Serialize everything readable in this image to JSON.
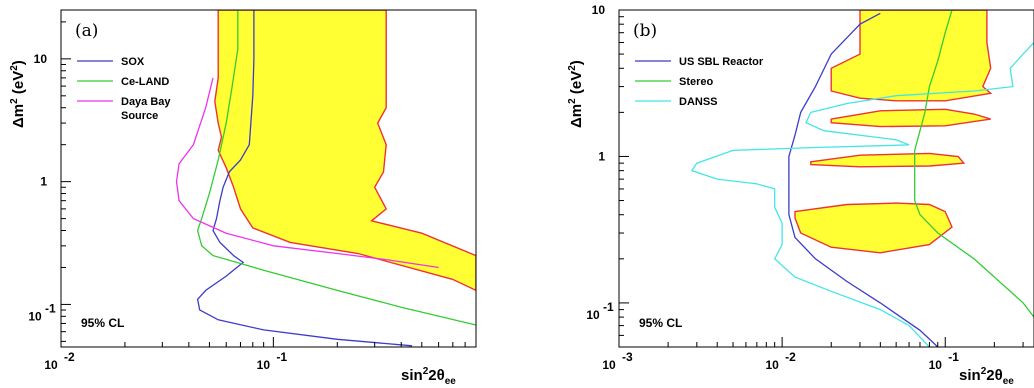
{
  "chart_data": [
    {
      "panel": "(a)",
      "type": "line",
      "xlabel": "sin²2θee",
      "ylabel": "Δm² (eV²)",
      "xscale": "log",
      "yscale": "log",
      "xlim": [
        0.01,
        0.9
      ],
      "ylim": [
        0.045,
        25
      ],
      "x_ticks": [
        {
          "base": "10",
          "exp": "-2"
        },
        {
          "base": "10",
          "exp": "-1"
        }
      ],
      "y_ticks": [
        {
          "label": "1"
        },
        {
          "label": "10",
          "exp": ""
        },
        {
          "base": "10",
          "exp": "-1"
        }
      ],
      "y_tick_values": [
        1,
        10,
        0.1
      ],
      "x_tick_values": [
        0.01,
        0.1
      ],
      "annotation": "95% CL",
      "legend_placement": "top-left",
      "series": [
        {
          "name": "SOX",
          "color": "#3b3bcc",
          "points": [
            [
              0.081,
              25
            ],
            [
              0.081,
              10
            ],
            [
              0.08,
              5
            ],
            [
              0.077,
              2
            ],
            [
              0.07,
              1.5
            ],
            [
              0.062,
              1.2
            ],
            [
              0.058,
              0.9
            ],
            [
              0.056,
              0.7
            ],
            [
              0.054,
              0.5
            ],
            [
              0.052,
              0.4
            ],
            [
              0.056,
              0.32
            ],
            [
              0.065,
              0.25
            ],
            [
              0.072,
              0.22
            ],
            [
              0.06,
              0.17
            ],
            [
              0.048,
              0.13
            ],
            [
              0.044,
              0.11
            ],
            [
              0.045,
              0.09
            ],
            [
              0.055,
              0.075
            ],
            [
              0.09,
              0.062
            ],
            [
              0.2,
              0.052
            ],
            [
              0.45,
              0.046
            ]
          ]
        },
        {
          "name": "Ce-LAND",
          "color": "#33cc33",
          "points": [
            [
              0.068,
              25
            ],
            [
              0.068,
              12
            ],
            [
              0.064,
              6
            ],
            [
              0.06,
              3
            ],
            [
              0.055,
              1.5
            ],
            [
              0.05,
              0.8
            ],
            [
              0.046,
              0.5
            ],
            [
              0.044,
              0.4
            ],
            [
              0.046,
              0.3
            ],
            [
              0.052,
              0.25
            ],
            [
              0.09,
              0.19
            ],
            [
              0.2,
              0.13
            ],
            [
              0.4,
              0.095
            ],
            [
              0.9,
              0.068
            ]
          ]
        },
        {
          "name": "Daya Bay Source",
          "color": "#ee33ee",
          "points": [
            [
              0.052,
              7
            ],
            [
              0.048,
              4
            ],
            [
              0.042,
              2
            ],
            [
              0.036,
              1.4
            ],
            [
              0.035,
              1.0
            ],
            [
              0.036,
              0.7
            ],
            [
              0.042,
              0.5
            ],
            [
              0.06,
              0.38
            ],
            [
              0.1,
              0.3
            ],
            [
              0.2,
              0.26
            ],
            [
              0.35,
              0.23
            ],
            [
              0.6,
              0.2
            ]
          ]
        }
      ],
      "filled_region": {
        "fill": "#ffff33",
        "edge": "#ee3333",
        "points": [
          [
            0.055,
            25
          ],
          [
            0.34,
            25
          ],
          [
            0.34,
            9
          ],
          [
            0.34,
            4
          ],
          [
            0.31,
            3
          ],
          [
            0.34,
            2
          ],
          [
            0.33,
            1.2
          ],
          [
            0.3,
            0.9
          ],
          [
            0.34,
            0.6
          ],
          [
            0.29,
            0.48
          ],
          [
            0.5,
            0.38
          ],
          [
            0.9,
            0.25
          ],
          [
            0.9,
            0.13
          ],
          [
            0.7,
            0.16
          ],
          [
            0.25,
            0.26
          ],
          [
            0.12,
            0.32
          ],
          [
            0.08,
            0.42
          ],
          [
            0.07,
            0.6
          ],
          [
            0.065,
            0.9
          ],
          [
            0.06,
            1.3
          ],
          [
            0.055,
            1.8
          ],
          [
            0.057,
            2.3
          ],
          [
            0.055,
            3
          ],
          [
            0.053,
            4.5
          ],
          [
            0.055,
            7
          ],
          [
            0.055,
            12
          ],
          [
            0.055,
            25
          ]
        ]
      }
    },
    {
      "panel": "(b)",
      "type": "line",
      "xlabel": "sin²2θee",
      "ylabel": "Δm² (eV²)",
      "xscale": "log",
      "yscale": "log",
      "xlim": [
        0.001,
        0.35
      ],
      "ylim": [
        0.05,
        10
      ],
      "x_tick_values": [
        0.001,
        0.01,
        0.1
      ],
      "x_ticks": [
        {
          "base": "10",
          "exp": "-3"
        },
        {
          "base": "10",
          "exp": "-2"
        },
        {
          "base": "10",
          "exp": "-1"
        }
      ],
      "y_tick_values": [
        10,
        1,
        0.1
      ],
      "y_ticks": [
        {
          "label": "10"
        },
        {
          "label": "1"
        },
        {
          "base": "10",
          "exp": "-1"
        }
      ],
      "annotation": "95% CL",
      "legend_placement": "top-left",
      "series": [
        {
          "name": "US SBL Reactor",
          "color": "#3b3bcc",
          "points": [
            [
              0.04,
              9.5
            ],
            [
              0.03,
              8
            ],
            [
              0.02,
              5
            ],
            [
              0.016,
              3
            ],
            [
              0.013,
              2
            ],
            [
              0.012,
              1.4
            ],
            [
              0.011,
              1
            ],
            [
              0.011,
              0.6
            ],
            [
              0.011,
              0.4
            ],
            [
              0.012,
              0.28
            ],
            [
              0.016,
              0.2
            ],
            [
              0.025,
              0.14
            ],
            [
              0.04,
              0.1
            ],
            [
              0.07,
              0.065
            ],
            [
              0.09,
              0.05
            ]
          ]
        },
        {
          "name": "Stereo",
          "color": "#33cc33",
          "points": [
            [
              0.11,
              10
            ],
            [
              0.1,
              7
            ],
            [
              0.09,
              4.5
            ],
            [
              0.08,
              3
            ],
            [
              0.075,
              2
            ],
            [
              0.07,
              1.5
            ],
            [
              0.065,
              1.1
            ],
            [
              0.065,
              0.8
            ],
            [
              0.065,
              0.5
            ],
            [
              0.07,
              0.4
            ],
            [
              0.09,
              0.3
            ],
            [
              0.15,
              0.2
            ],
            [
              0.3,
              0.1
            ],
            [
              0.35,
              0.08
            ]
          ]
        },
        {
          "name": "DANSS",
          "color": "#44e5e5",
          "points": [
            [
              0.35,
              6
            ],
            [
              0.3,
              5
            ],
            [
              0.25,
              4
            ],
            [
              0.26,
              3
            ],
            [
              0.15,
              2.8
            ],
            [
              0.05,
              2.6
            ],
            [
              0.025,
              2.3
            ],
            [
              0.015,
              2
            ],
            [
              0.014,
              1.7
            ],
            [
              0.018,
              1.5
            ],
            [
              0.05,
              1.3
            ],
            [
              0.06,
              1.2
            ],
            [
              0.015,
              1.15
            ],
            [
              0.005,
              1.1
            ],
            [
              0.003,
              0.9
            ],
            [
              0.0028,
              0.8
            ],
            [
              0.004,
              0.7
            ],
            [
              0.007,
              0.65
            ],
            [
              0.009,
              0.6
            ],
            [
              0.009,
              0.45
            ],
            [
              0.01,
              0.35
            ],
            [
              0.01,
              0.25
            ],
            [
              0.009,
              0.2
            ],
            [
              0.012,
              0.15
            ],
            [
              0.02,
              0.12
            ],
            [
              0.04,
              0.09
            ],
            [
              0.06,
              0.07
            ],
            [
              0.08,
              0.05
            ]
          ]
        }
      ],
      "filled_regions": [
        {
          "fill": "#ffff33",
          "edge": "#ee3333",
          "points": [
            [
              0.03,
              10
            ],
            [
              0.18,
              10
            ],
            [
              0.18,
              6
            ],
            [
              0.19,
              4
            ],
            [
              0.17,
              3
            ],
            [
              0.19,
              2.7
            ],
            [
              0.1,
              2.4
            ],
            [
              0.05,
              2.4
            ],
            [
              0.03,
              2.5
            ],
            [
              0.02,
              2.8
            ],
            [
              0.02,
              4
            ],
            [
              0.03,
              5
            ],
            [
              0.03,
              10
            ]
          ]
        },
        {
          "fill": "#ffff33",
          "edge": "#ee3333",
          "points": [
            [
              0.02,
              1.8
            ],
            [
              0.04,
              2.05
            ],
            [
              0.1,
              2.1
            ],
            [
              0.15,
              1.95
            ],
            [
              0.19,
              1.8
            ],
            [
              0.1,
              1.62
            ],
            [
              0.04,
              1.6
            ],
            [
              0.02,
              1.7
            ]
          ]
        },
        {
          "fill": "#ffff33",
          "edge": "#ee3333",
          "points": [
            [
              0.015,
              0.92
            ],
            [
              0.03,
              1.02
            ],
            [
              0.08,
              1.05
            ],
            [
              0.12,
              1.0
            ],
            [
              0.13,
              0.9
            ],
            [
              0.08,
              0.86
            ],
            [
              0.03,
              0.85
            ],
            [
              0.015,
              0.88
            ]
          ]
        },
        {
          "fill": "#ffff33",
          "edge": "#ee3333",
          "points": [
            [
              0.012,
              0.42
            ],
            [
              0.025,
              0.47
            ],
            [
              0.05,
              0.48
            ],
            [
              0.08,
              0.47
            ],
            [
              0.1,
              0.42
            ],
            [
              0.11,
              0.33
            ],
            [
              0.08,
              0.25
            ],
            [
              0.04,
              0.22
            ],
            [
              0.02,
              0.24
            ],
            [
              0.013,
              0.3
            ],
            [
              0.012,
              0.38
            ]
          ]
        }
      ]
    }
  ]
}
